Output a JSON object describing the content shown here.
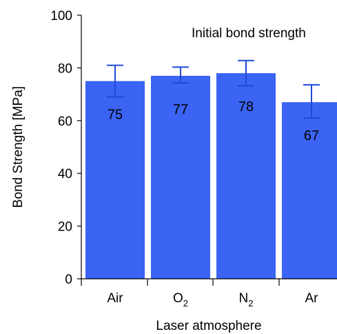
{
  "chart_data": {
    "type": "bar",
    "annotation": "Initial bond strength",
    "xlabel": "Laser atmosphere",
    "ylabel": "Bond Strength [MPa]",
    "ylim": [
      0,
      100
    ],
    "yticks": [
      0,
      20,
      40,
      60,
      80,
      100
    ],
    "categories": [
      {
        "base": "Air",
        "sub": ""
      },
      {
        "base": "O",
        "sub": "2"
      },
      {
        "base": "N",
        "sub": "2"
      },
      {
        "base": "Ar",
        "sub": ""
      }
    ],
    "values": [
      75,
      77,
      78,
      67
    ],
    "value_labels": [
      "75",
      "77",
      "78",
      "67"
    ],
    "error_high": [
      81,
      80.3,
      82.8,
      73.6
    ],
    "error_low": [
      69,
      74.3,
      73.2,
      61
    ],
    "bar_color": "#3b63f4",
    "grid": false
  }
}
